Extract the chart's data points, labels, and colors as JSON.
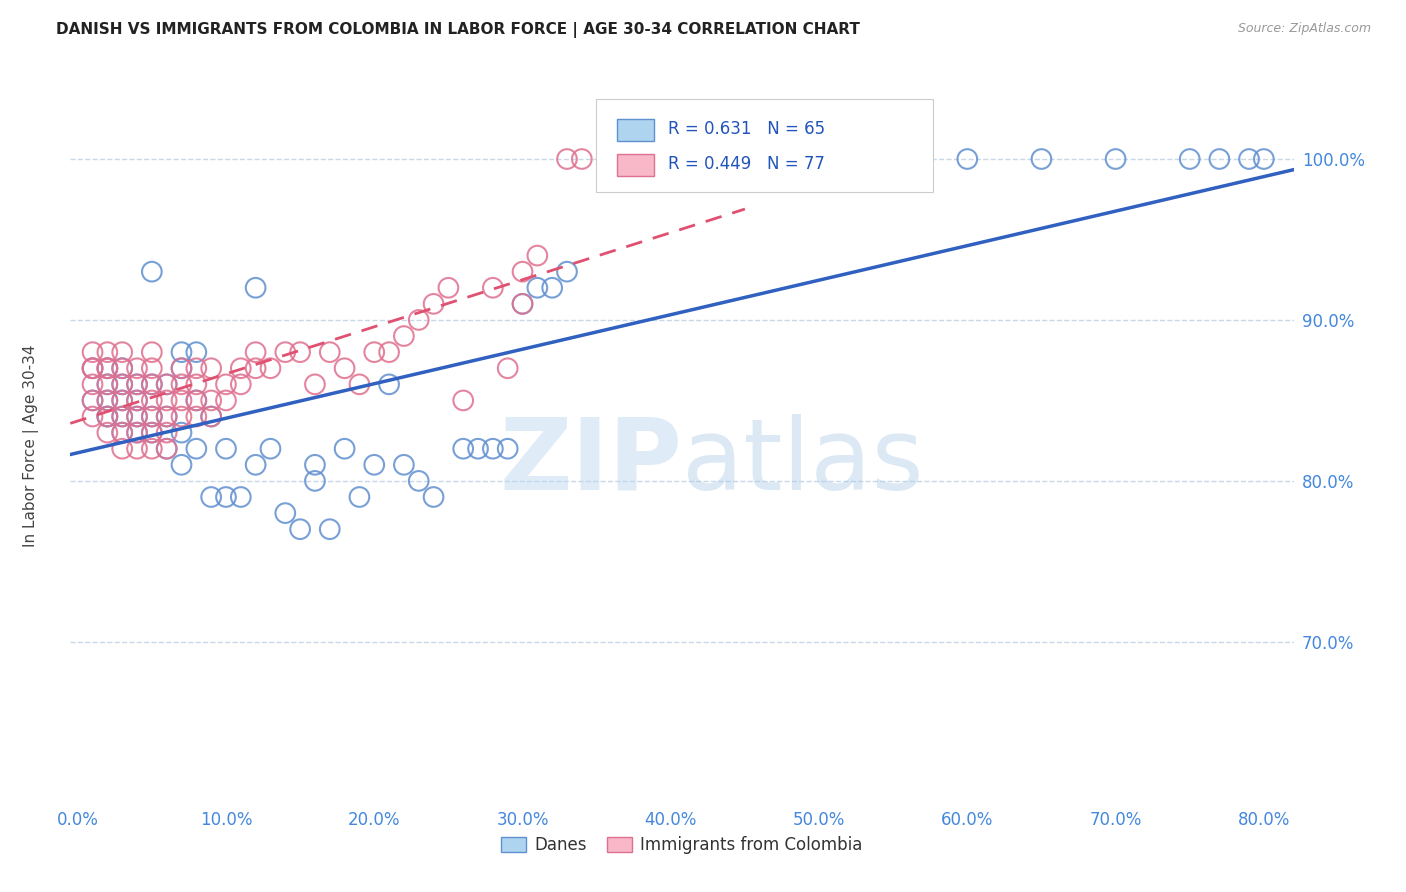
{
  "title": "DANISH VS IMMIGRANTS FROM COLOMBIA IN LABOR FORCE | AGE 30-34 CORRELATION CHART",
  "source": "Source: ZipAtlas.com",
  "ylabel": "In Labor Force | Age 30-34",
  "x_tick_labels": [
    "0.0%",
    "10.0%",
    "20.0%",
    "30.0%",
    "40.0%",
    "50.0%",
    "60.0%",
    "70.0%",
    "80.0%"
  ],
  "x_tick_values": [
    0.0,
    0.1,
    0.2,
    0.3,
    0.4,
    0.5,
    0.6,
    0.7,
    0.8
  ],
  "y_tick_labels": [
    "100.0%",
    "90.0%",
    "80.0%",
    "70.0%"
  ],
  "y_tick_values": [
    1.0,
    0.9,
    0.8,
    0.7
  ],
  "xlim": [
    -0.005,
    0.82
  ],
  "ylim": [
    0.6,
    1.06
  ],
  "blue_R": 0.631,
  "blue_N": 65,
  "pink_R": 0.449,
  "pink_N": 77,
  "blue_color": "#AED4F0",
  "pink_color": "#F8B8C8",
  "blue_edge_color": "#6090D0",
  "pink_edge_color": "#E07090",
  "blue_line_color": "#3060C0",
  "pink_line_color": "#E05070",
  "tick_color": "#4488DD",
  "legend_label_blue": "Danes",
  "legend_label_pink": "Immigrants from Colombia",
  "watermark_zip": "ZIP",
  "watermark_atlas": "atlas",
  "watermark_color": "#C8DFF5",
  "grid_color": "#C8D8E8",
  "blue_x": [
    0.01,
    0.01,
    0.02,
    0.02,
    0.02,
    0.02,
    0.02,
    0.03,
    0.03,
    0.03,
    0.03,
    0.03,
    0.04,
    0.04,
    0.04,
    0.04,
    0.05,
    0.05,
    0.05,
    0.05,
    0.06,
    0.06,
    0.06,
    0.07,
    0.07,
    0.07,
    0.07,
    0.08,
    0.08,
    0.08,
    0.09,
    0.09,
    0.1,
    0.1,
    0.11,
    0.12,
    0.12,
    0.13,
    0.14,
    0.15,
    0.16,
    0.16,
    0.17,
    0.18,
    0.19,
    0.2,
    0.21,
    0.22,
    0.23,
    0.24,
    0.26,
    0.27,
    0.28,
    0.29,
    0.3,
    0.31,
    0.32,
    0.33,
    0.6,
    0.65,
    0.7,
    0.75,
    0.77,
    0.79,
    0.8
  ],
  "blue_y": [
    0.85,
    0.87,
    0.84,
    0.85,
    0.86,
    0.87,
    0.84,
    0.83,
    0.84,
    0.85,
    0.86,
    0.87,
    0.83,
    0.84,
    0.85,
    0.86,
    0.83,
    0.84,
    0.86,
    0.93,
    0.82,
    0.84,
    0.86,
    0.81,
    0.83,
    0.87,
    0.88,
    0.82,
    0.85,
    0.88,
    0.79,
    0.84,
    0.79,
    0.82,
    0.79,
    0.81,
    0.92,
    0.82,
    0.78,
    0.77,
    0.8,
    0.81,
    0.77,
    0.82,
    0.79,
    0.81,
    0.86,
    0.81,
    0.8,
    0.79,
    0.82,
    0.82,
    0.82,
    0.82,
    0.91,
    0.92,
    0.92,
    0.93,
    1.0,
    1.0,
    1.0,
    1.0,
    1.0,
    1.0,
    1.0
  ],
  "pink_x": [
    0.01,
    0.01,
    0.01,
    0.01,
    0.01,
    0.01,
    0.02,
    0.02,
    0.02,
    0.02,
    0.02,
    0.02,
    0.02,
    0.03,
    0.03,
    0.03,
    0.03,
    0.03,
    0.03,
    0.03,
    0.04,
    0.04,
    0.04,
    0.04,
    0.04,
    0.04,
    0.05,
    0.05,
    0.05,
    0.05,
    0.05,
    0.05,
    0.05,
    0.06,
    0.06,
    0.06,
    0.06,
    0.06,
    0.07,
    0.07,
    0.07,
    0.07,
    0.08,
    0.08,
    0.08,
    0.08,
    0.09,
    0.09,
    0.09,
    0.1,
    0.1,
    0.11,
    0.11,
    0.12,
    0.12,
    0.13,
    0.14,
    0.15,
    0.16,
    0.17,
    0.18,
    0.19,
    0.2,
    0.21,
    0.22,
    0.23,
    0.24,
    0.25,
    0.26,
    0.28,
    0.29,
    0.3,
    0.3,
    0.31,
    0.33,
    0.34,
    0.37
  ],
  "pink_y": [
    0.84,
    0.85,
    0.86,
    0.87,
    0.87,
    0.88,
    0.83,
    0.84,
    0.85,
    0.86,
    0.87,
    0.87,
    0.88,
    0.82,
    0.83,
    0.84,
    0.85,
    0.86,
    0.87,
    0.88,
    0.82,
    0.83,
    0.84,
    0.85,
    0.86,
    0.87,
    0.82,
    0.83,
    0.84,
    0.85,
    0.86,
    0.87,
    0.88,
    0.82,
    0.83,
    0.84,
    0.85,
    0.86,
    0.84,
    0.85,
    0.86,
    0.87,
    0.84,
    0.85,
    0.86,
    0.87,
    0.84,
    0.85,
    0.87,
    0.85,
    0.86,
    0.86,
    0.87,
    0.87,
    0.88,
    0.87,
    0.88,
    0.88,
    0.86,
    0.88,
    0.87,
    0.86,
    0.88,
    0.88,
    0.89,
    0.9,
    0.91,
    0.92,
    0.85,
    0.92,
    0.87,
    0.93,
    0.91,
    0.94,
    1.0,
    1.0,
    1.0
  ]
}
